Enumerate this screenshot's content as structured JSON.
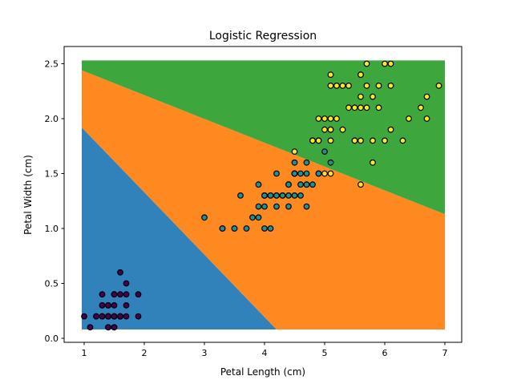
{
  "chart_data": {
    "type": "scatter",
    "title": "Logistic Regression",
    "xlabel": "Petal Length (cm)",
    "ylabel": "Petal Width (cm)",
    "xlim": [
      0.7,
      7.3
    ],
    "ylim": [
      -0.04,
      2.65
    ],
    "xticks": [
      "1",
      "2",
      "3",
      "4",
      "5",
      "6",
      "7"
    ],
    "yticks": [
      "0.0",
      "0.5",
      "1.0",
      "1.5",
      "2.0",
      "2.5"
    ],
    "grid": false,
    "legend": "none",
    "decision_regions": {
      "colors": [
        "#1f77b4",
        "#ff7f0e",
        "#2ca02c"
      ],
      "extent": {
        "x": [
          0.96,
          7.0
        ],
        "y": [
          0.08,
          2.53
        ]
      },
      "boundaries": [
        {
          "between": [
            0,
            1
          ],
          "points": [
            [
              0.96,
              1.92
            ],
            [
              4.2,
              0.1
            ]
          ]
        },
        {
          "between": [
            1,
            2
          ],
          "points": [
            [
              0.96,
              2.44
            ],
            [
              7.0,
              1.13
            ]
          ]
        }
      ]
    },
    "series": [
      {
        "color": "#440154",
        "points": [
          [
            1.4,
            0.2
          ],
          [
            1.4,
            0.2
          ],
          [
            1.3,
            0.2
          ],
          [
            1.5,
            0.2
          ],
          [
            1.4,
            0.2
          ],
          [
            1.7,
            0.4
          ],
          [
            1.4,
            0.3
          ],
          [
            1.5,
            0.2
          ],
          [
            1.4,
            0.2
          ],
          [
            1.5,
            0.1
          ],
          [
            1.5,
            0.2
          ],
          [
            1.6,
            0.2
          ],
          [
            1.4,
            0.1
          ],
          [
            1.1,
            0.1
          ],
          [
            1.2,
            0.2
          ],
          [
            1.5,
            0.4
          ],
          [
            1.3,
            0.4
          ],
          [
            1.4,
            0.3
          ],
          [
            1.7,
            0.3
          ],
          [
            1.5,
            0.3
          ],
          [
            1.7,
            0.2
          ],
          [
            1.5,
            0.4
          ],
          [
            1.0,
            0.2
          ],
          [
            1.7,
            0.5
          ],
          [
            1.9,
            0.2
          ],
          [
            1.6,
            0.2
          ],
          [
            1.6,
            0.4
          ],
          [
            1.5,
            0.2
          ],
          [
            1.4,
            0.2
          ],
          [
            1.6,
            0.2
          ],
          [
            1.6,
            0.2
          ],
          [
            1.5,
            0.4
          ],
          [
            1.5,
            0.1
          ],
          [
            1.4,
            0.2
          ],
          [
            1.5,
            0.2
          ],
          [
            1.2,
            0.2
          ],
          [
            1.3,
            0.2
          ],
          [
            1.4,
            0.1
          ],
          [
            1.3,
            0.2
          ],
          [
            1.5,
            0.2
          ],
          [
            1.3,
            0.3
          ],
          [
            1.3,
            0.3
          ],
          [
            1.3,
            0.2
          ],
          [
            1.6,
            0.6
          ],
          [
            1.9,
            0.4
          ],
          [
            1.6,
            0.2
          ],
          [
            1.4,
            0.2
          ],
          [
            1.5,
            0.2
          ],
          [
            1.4,
            0.2
          ]
        ]
      },
      {
        "color": "#21918c",
        "points": [
          [
            4.7,
            1.4
          ],
          [
            4.5,
            1.5
          ],
          [
            4.9,
            1.5
          ],
          [
            4.0,
            1.3
          ],
          [
            4.6,
            1.5
          ],
          [
            4.5,
            1.3
          ],
          [
            4.7,
            1.6
          ],
          [
            3.3,
            1.0
          ],
          [
            4.6,
            1.3
          ],
          [
            3.9,
            1.4
          ],
          [
            3.5,
            1.0
          ],
          [
            4.2,
            1.5
          ],
          [
            4.0,
            1.0
          ],
          [
            4.7,
            1.4
          ],
          [
            3.6,
            1.3
          ],
          [
            4.4,
            1.4
          ],
          [
            4.5,
            1.5
          ],
          [
            4.1,
            1.0
          ],
          [
            4.5,
            1.5
          ],
          [
            3.9,
            1.1
          ],
          [
            4.8,
            1.8
          ],
          [
            4.0,
            1.3
          ],
          [
            4.9,
            1.5
          ],
          [
            4.7,
            1.2
          ],
          [
            4.3,
            1.3
          ],
          [
            4.4,
            1.4
          ],
          [
            4.8,
            1.4
          ],
          [
            5.0,
            1.7
          ],
          [
            4.5,
            1.5
          ],
          [
            3.5,
            1.0
          ],
          [
            3.8,
            1.1
          ],
          [
            3.7,
            1.0
          ],
          [
            3.9,
            1.2
          ],
          [
            5.1,
            1.6
          ],
          [
            4.5,
            1.5
          ],
          [
            4.5,
            1.6
          ],
          [
            4.7,
            1.5
          ],
          [
            4.4,
            1.3
          ],
          [
            4.1,
            1.3
          ],
          [
            4.0,
            1.3
          ],
          [
            4.4,
            1.2
          ],
          [
            4.6,
            1.4
          ],
          [
            4.0,
            1.2
          ],
          [
            3.3,
            1.0
          ],
          [
            4.2,
            1.3
          ],
          [
            4.2,
            1.2
          ],
          [
            4.2,
            1.3
          ],
          [
            4.3,
            1.3
          ],
          [
            3.0,
            1.1
          ],
          [
            4.1,
            1.3
          ]
        ]
      },
      {
        "color": "#fde725",
        "points": [
          [
            6.0,
            2.5
          ],
          [
            5.1,
            1.9
          ],
          [
            5.9,
            2.1
          ],
          [
            5.6,
            1.8
          ],
          [
            5.8,
            2.2
          ],
          [
            6.6,
            2.1
          ],
          [
            4.5,
            1.7
          ],
          [
            6.3,
            1.8
          ],
          [
            5.8,
            1.8
          ],
          [
            6.1,
            2.5
          ],
          [
            5.1,
            2.0
          ],
          [
            5.3,
            1.9
          ],
          [
            5.5,
            2.1
          ],
          [
            5.0,
            2.0
          ],
          [
            5.1,
            2.4
          ],
          [
            5.3,
            2.3
          ],
          [
            5.5,
            1.8
          ],
          [
            6.7,
            2.2
          ],
          [
            6.9,
            2.3
          ],
          [
            5.0,
            1.5
          ],
          [
            5.7,
            2.3
          ],
          [
            4.9,
            2.0
          ],
          [
            6.7,
            2.0
          ],
          [
            4.9,
            1.8
          ],
          [
            5.7,
            2.1
          ],
          [
            6.0,
            1.8
          ],
          [
            4.8,
            1.8
          ],
          [
            4.9,
            1.8
          ],
          [
            5.6,
            2.1
          ],
          [
            5.8,
            1.6
          ],
          [
            6.1,
            1.9
          ],
          [
            6.4,
            2.0
          ],
          [
            5.6,
            2.2
          ],
          [
            5.1,
            1.5
          ],
          [
            5.6,
            1.4
          ],
          [
            6.1,
            2.3
          ],
          [
            5.6,
            2.4
          ],
          [
            5.5,
            1.8
          ],
          [
            4.8,
            1.8
          ],
          [
            5.4,
            2.1
          ],
          [
            5.6,
            2.4
          ],
          [
            5.1,
            2.3
          ],
          [
            5.1,
            1.9
          ],
          [
            5.9,
            2.3
          ],
          [
            5.7,
            2.5
          ],
          [
            5.2,
            2.3
          ],
          [
            5.0,
            1.9
          ],
          [
            5.2,
            2.0
          ],
          [
            5.4,
            2.3
          ],
          [
            5.1,
            1.8
          ]
        ]
      }
    ]
  }
}
